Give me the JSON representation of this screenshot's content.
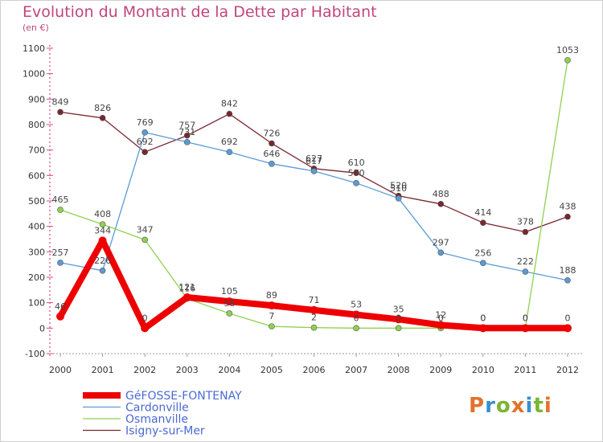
{
  "title": "Evolution du Montant de la Dette par Habitant",
  "unit": "(en €)",
  "logo": {
    "text": "Proxiti",
    "letters": [
      "P",
      "r",
      "o",
      "x",
      "i",
      "t",
      "i"
    ],
    "colors": [
      "#e1732b",
      "#3a8fd0",
      "#7bb532",
      "#e1732b",
      "#3a8fd0",
      "#7bb532",
      "#e1732b"
    ]
  },
  "chart_data": {
    "type": "line",
    "title": "Evolution du Montant de la Dette par Habitant",
    "ylabel": "(en €)",
    "xlabel": "",
    "x": [
      "2000",
      "2001",
      "2002",
      "2003",
      "2004",
      "2005",
      "2006",
      "2007",
      "2008",
      "2009",
      "2010",
      "2011",
      "2012"
    ],
    "ylim": [
      -100,
      1100
    ],
    "yticks": [
      -100,
      0,
      100,
      200,
      300,
      400,
      500,
      600,
      700,
      800,
      900,
      1000,
      1100
    ],
    "grid": false,
    "legend": "bottom-left",
    "series": [
      {
        "name": "Isigny-sur-Mer",
        "color": "#7a2630",
        "values": [
          849,
          826,
          692,
          757,
          842,
          726,
          627,
          610,
          520,
          488,
          414,
          378,
          438
        ]
      },
      {
        "name": "Cardonville",
        "color": "#5b9bd5",
        "values": [
          257,
          226,
          769,
          731,
          692,
          646,
          617,
          570,
          510,
          297,
          256,
          222,
          188
        ]
      },
      {
        "name": "Osmanville",
        "color": "#8fd14f",
        "values": [
          465,
          408,
          347,
          116,
          58,
          7,
          2,
          0,
          0,
          0,
          0,
          0,
          1053
        ]
      },
      {
        "name": "GéFOSSE-FONTENAY",
        "color": "#ee0000",
        "values": [
          46,
          344,
          0,
          121,
          105,
          89,
          71,
          53,
          35,
          12,
          0,
          0,
          0
        ]
      }
    ],
    "legend_order": [
      "GéFOSSE-FONTENAY",
      "Cardonville",
      "Osmanville",
      "Isigny-sur-Mer"
    ]
  }
}
